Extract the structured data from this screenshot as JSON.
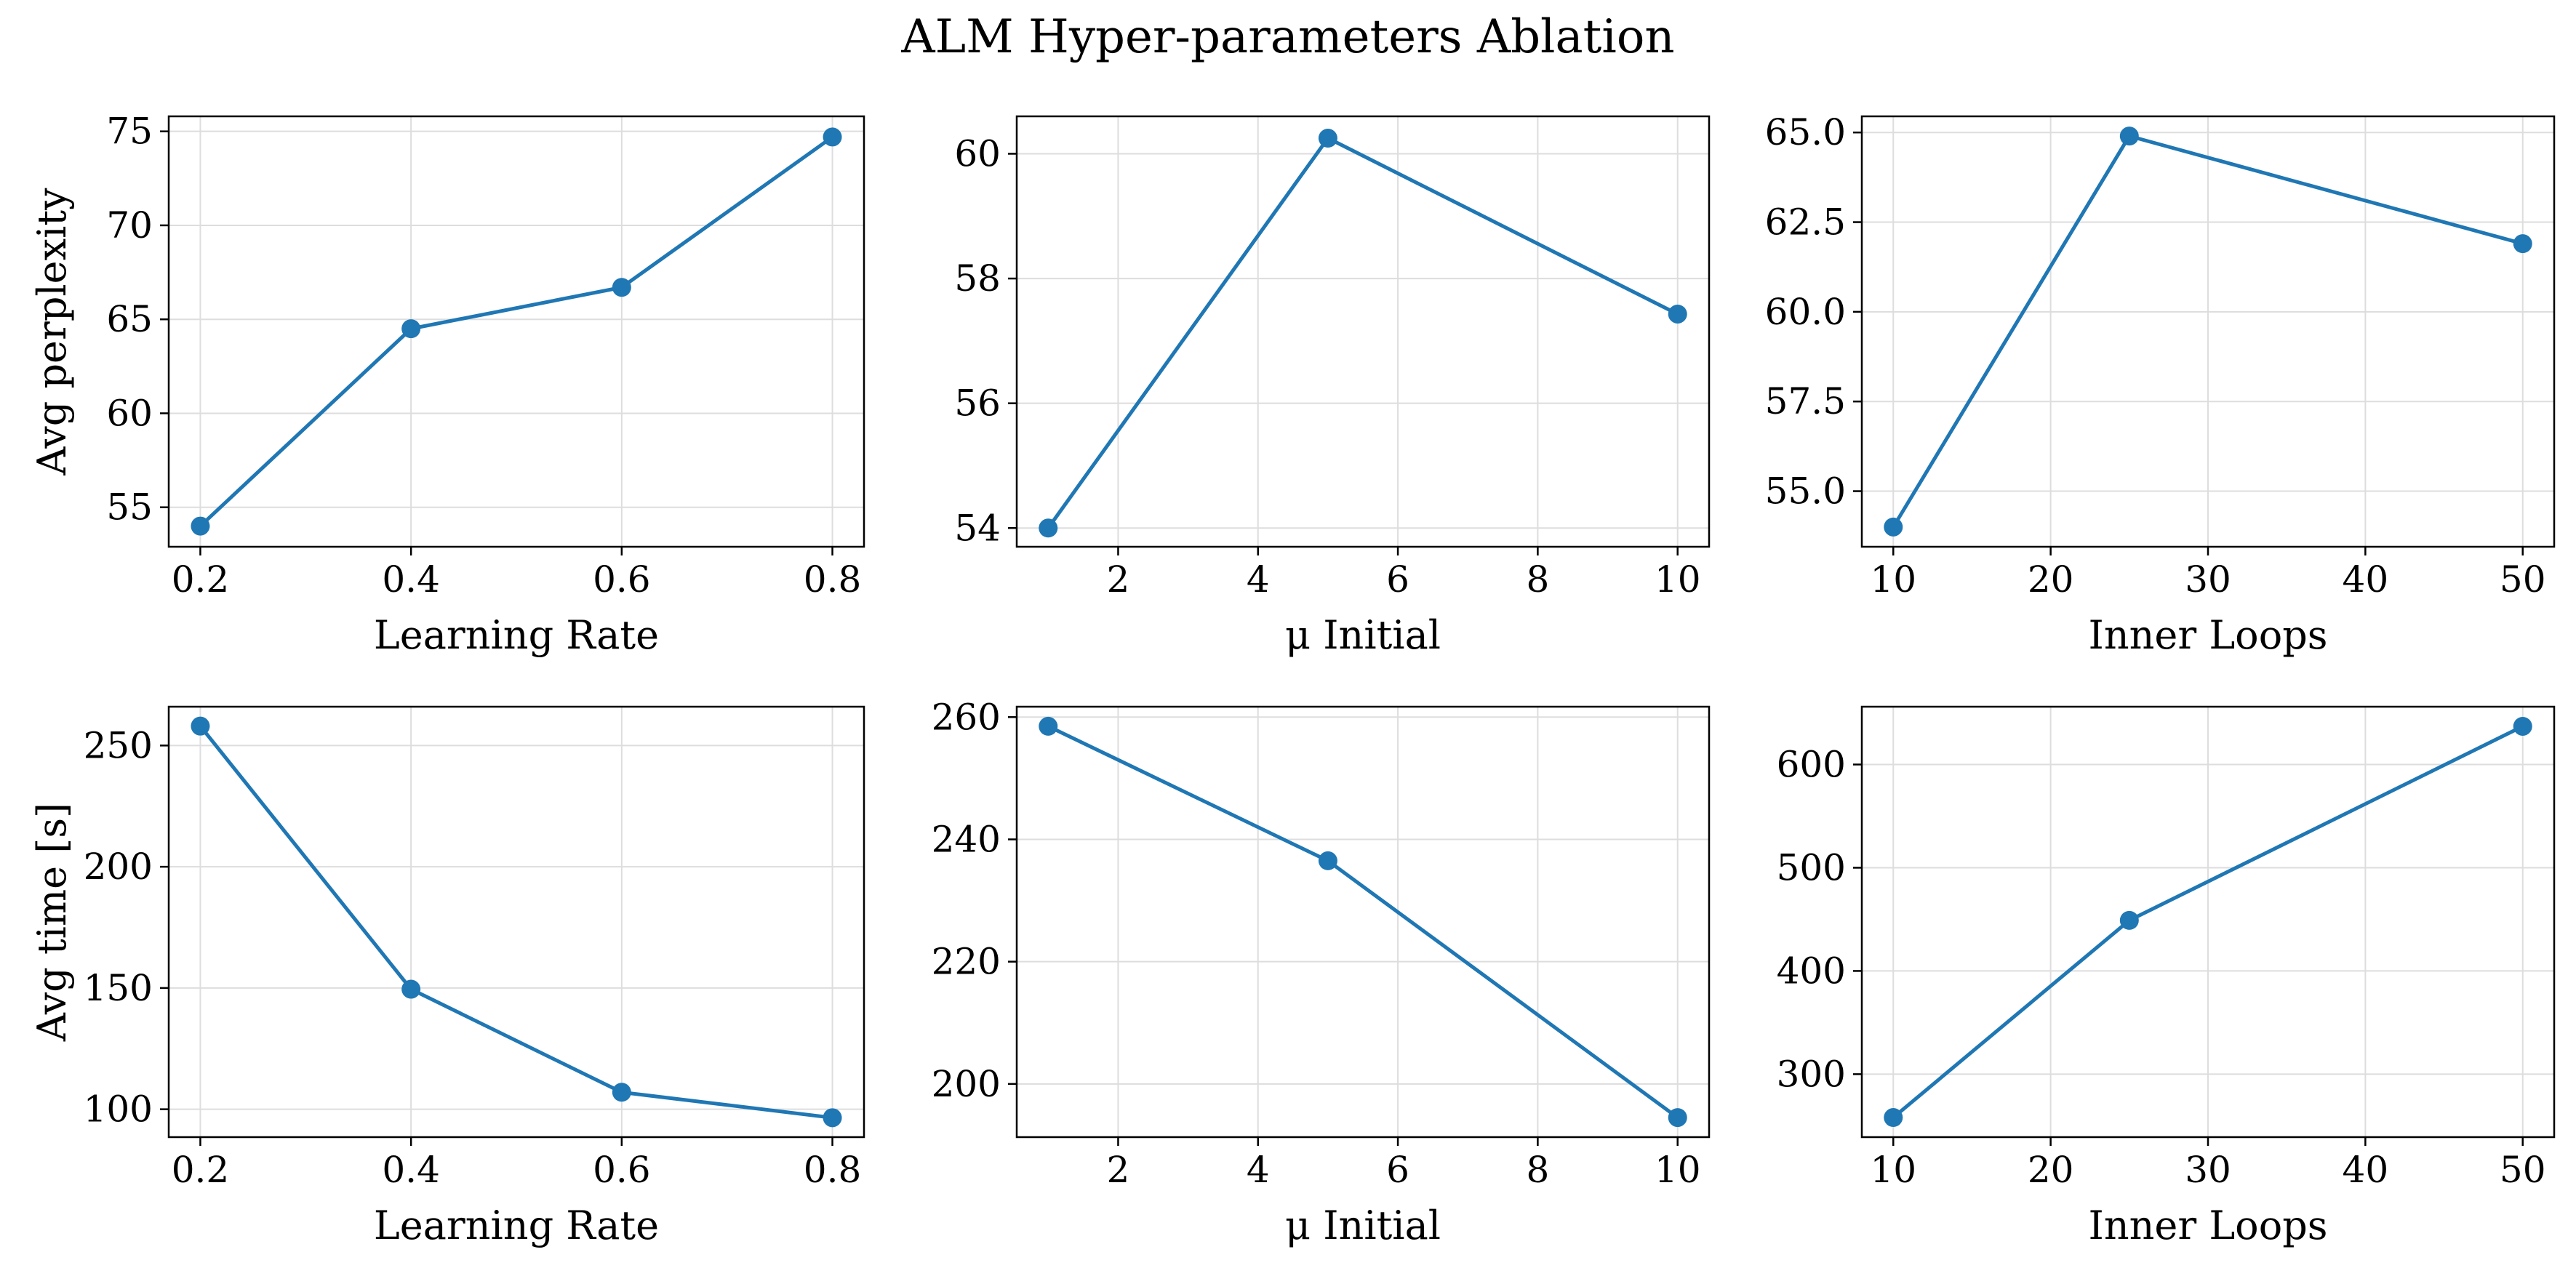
{
  "figure": {
    "title": "ALM Hyper-parameters Ablation"
  },
  "colors": {
    "series": "#1f77b4",
    "grid": "#dddddd",
    "axes": "#000000"
  },
  "chart_data": [
    {
      "id": "lr-ppl",
      "type": "line",
      "xlabel": "Learning Rate",
      "ylabel": "Avg perplexity",
      "x": [
        0.2,
        0.4,
        0.6,
        0.8
      ],
      "y": [
        54.0,
        64.5,
        66.7,
        74.7
      ],
      "xlim": [
        0.17,
        0.83
      ],
      "ylim": [
        52.9,
        75.8
      ],
      "xticks": [
        0.2,
        0.4,
        0.6,
        0.8
      ],
      "xtick_labels": [
        "0.2",
        "0.4",
        "0.6",
        "0.8"
      ],
      "yticks": [
        55,
        60,
        65,
        70,
        75
      ],
      "ytick_labels": [
        "55",
        "60",
        "65",
        "70",
        "75"
      ],
      "grid": true,
      "marker": "circle"
    },
    {
      "id": "mu-ppl",
      "type": "line",
      "xlabel": "μ Initial",
      "ylabel": "",
      "x": [
        1,
        5,
        10
      ],
      "y": [
        54.0,
        60.25,
        57.43
      ],
      "xlim": [
        0.55,
        10.45
      ],
      "ylim": [
        53.7,
        60.6
      ],
      "xticks": [
        2,
        4,
        6,
        8,
        10
      ],
      "xtick_labels": [
        "2",
        "4",
        "6",
        "8",
        "10"
      ],
      "yticks": [
        54,
        56,
        58,
        60
      ],
      "ytick_labels": [
        "54",
        "56",
        "58",
        "60"
      ],
      "grid": true,
      "marker": "circle"
    },
    {
      "id": "loops-ppl",
      "type": "line",
      "xlabel": "Inner Loops",
      "ylabel": "",
      "x": [
        10,
        25,
        50
      ],
      "y": [
        54.0,
        64.9,
        61.9
      ],
      "xlim": [
        8.0,
        52.0
      ],
      "ylim": [
        53.45,
        65.45
      ],
      "xticks": [
        10,
        20,
        30,
        40,
        50
      ],
      "xtick_labels": [
        "10",
        "20",
        "30",
        "40",
        "50"
      ],
      "yticks": [
        55.0,
        57.5,
        60.0,
        62.5,
        65.0
      ],
      "ytick_labels": [
        "55.0",
        "57.5",
        "60.0",
        "62.5",
        "65.0"
      ],
      "grid": true,
      "marker": "circle"
    },
    {
      "id": "lr-time",
      "type": "line",
      "xlabel": "Learning Rate",
      "ylabel": "Avg time [s]",
      "x": [
        0.2,
        0.4,
        0.6,
        0.8
      ],
      "y": [
        258,
        149.5,
        107,
        96.5
      ],
      "xlim": [
        0.17,
        0.83
      ],
      "ylim": [
        88.5,
        266
      ],
      "xticks": [
        0.2,
        0.4,
        0.6,
        0.8
      ],
      "xtick_labels": [
        "0.2",
        "0.4",
        "0.6",
        "0.8"
      ],
      "yticks": [
        100,
        150,
        200,
        250
      ],
      "ytick_labels": [
        "100",
        "150",
        "200",
        "250"
      ],
      "grid": true,
      "marker": "circle"
    },
    {
      "id": "mu-time",
      "type": "line",
      "xlabel": "μ Initial",
      "ylabel": "",
      "x": [
        1,
        5,
        10
      ],
      "y": [
        258.5,
        236.5,
        194.5
      ],
      "xlim": [
        0.55,
        10.45
      ],
      "ylim": [
        191.3,
        261.7
      ],
      "xticks": [
        2,
        4,
        6,
        8,
        10
      ],
      "xtick_labels": [
        "2",
        "4",
        "6",
        "8",
        "10"
      ],
      "yticks": [
        200,
        220,
        240,
        260
      ],
      "ytick_labels": [
        "200",
        "220",
        "240",
        "260"
      ],
      "grid": true,
      "marker": "circle"
    },
    {
      "id": "loops-time",
      "type": "line",
      "xlabel": "Inner Loops",
      "ylabel": "",
      "x": [
        10,
        25,
        50
      ],
      "y": [
        258,
        449,
        637
      ],
      "xlim": [
        8.0,
        52.0
      ],
      "ylim": [
        239,
        656
      ],
      "xticks": [
        10,
        20,
        30,
        40,
        50
      ],
      "xtick_labels": [
        "10",
        "20",
        "30",
        "40",
        "50"
      ],
      "yticks": [
        300,
        400,
        500,
        600
      ],
      "ytick_labels": [
        "300",
        "400",
        "500",
        "600"
      ],
      "grid": true,
      "marker": "circle"
    }
  ]
}
